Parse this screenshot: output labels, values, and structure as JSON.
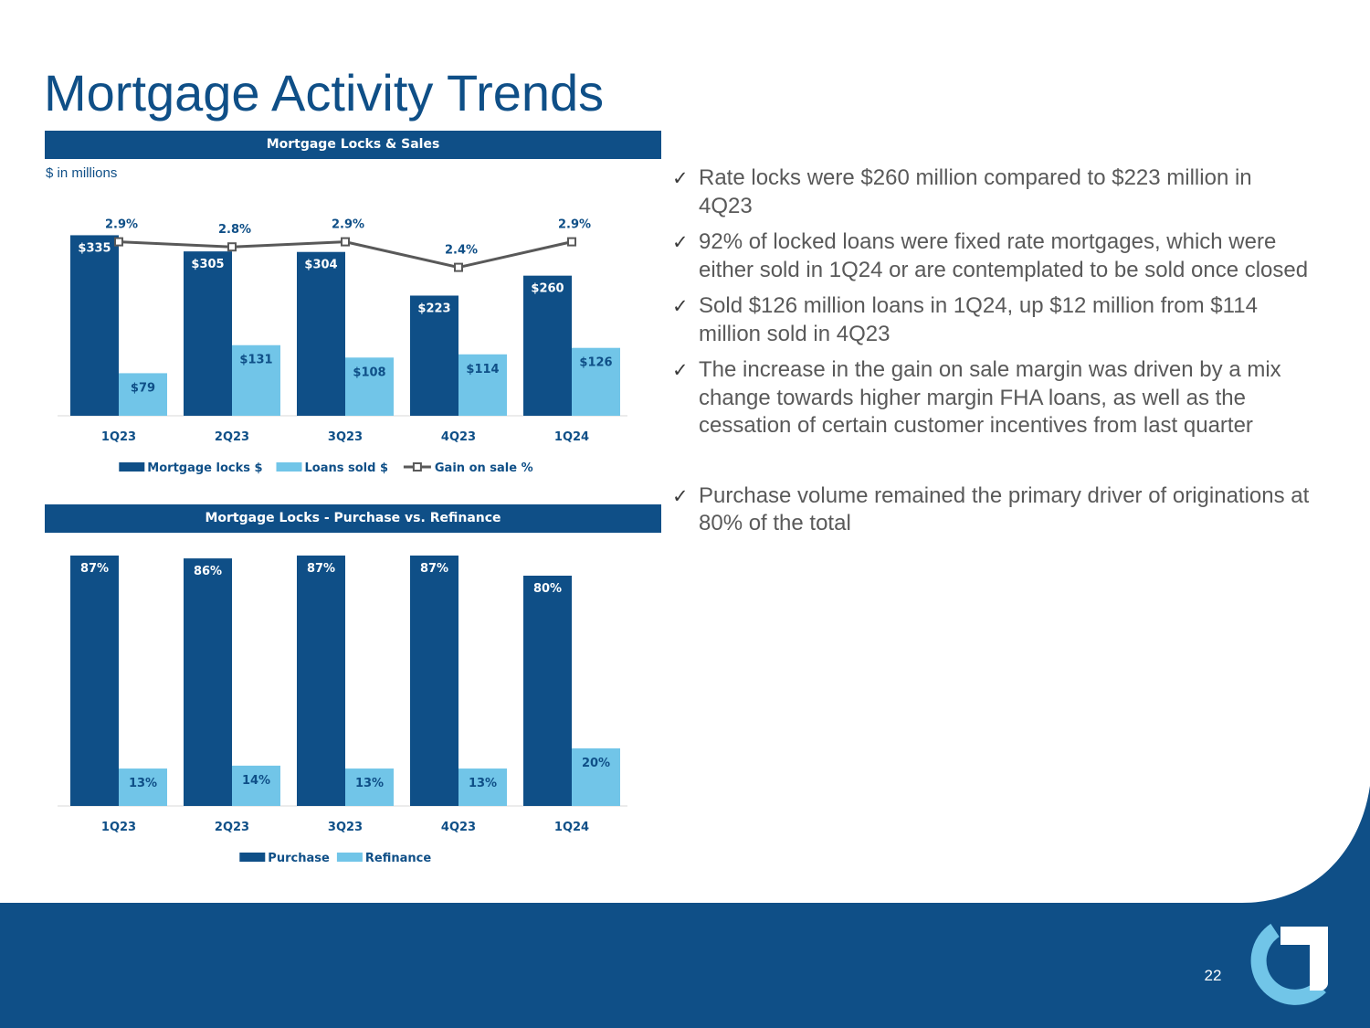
{
  "title": "Mortgage Activity Trends",
  "units_note": "$ in millions",
  "page_number": "22",
  "colors": {
    "navy": "#0f4f87",
    "light_blue": "#71c5e8",
    "line_gray": "#595959",
    "text_gray": "#595959"
  },
  "bullets": [
    {
      "check_icon": "checkmark-icon",
      "text": "Rate locks were $260 million compared to $223 million in 4Q23"
    },
    {
      "check_icon": "checkmark-icon",
      "text": "92% of locked loans were fixed rate mortgages, which were either sold in 1Q24 or are contemplated to be sold once closed"
    },
    {
      "check_icon": "checkmark-icon",
      "text": "Sold $126 million loans in 1Q24, up $12 million from $114 million sold in 4Q23"
    },
    {
      "check_icon": "checkmark-icon",
      "text": "The increase in the gain on sale margin was driven by a mix change towards higher margin FHA loans, as well as the cessation of certain customer incentives from last quarter"
    },
    {
      "check_icon": "checkmark-icon",
      "text": "Purchase volume remained the primary driver of originations at 80% of the total"
    }
  ],
  "chart_data": [
    {
      "type": "bar",
      "title": "Mortgage Locks & Sales",
      "categories": [
        "1Q23",
        "2Q23",
        "3Q23",
        "4Q23",
        "1Q24"
      ],
      "ylim": [
        0,
        390
      ],
      "series": [
        {
          "name": "Mortgage locks $",
          "kind": "bar",
          "color": "#0f4f87",
          "values": [
            335,
            305,
            304,
            223,
            260
          ],
          "labels": [
            "$335",
            "$305",
            "$304",
            "$223",
            "$260"
          ]
        },
        {
          "name": "Loans sold $",
          "kind": "bar",
          "color": "#71c5e8",
          "values": [
            79,
            131,
            108,
            114,
            126
          ],
          "labels": [
            "$79",
            "$131",
            "$108",
            "$114",
            "$126"
          ]
        },
        {
          "name": "Gain on sale %",
          "kind": "line",
          "color": "#595959",
          "values": [
            2.9,
            2.8,
            2.9,
            2.4,
            2.9
          ],
          "labels": [
            "2.9%",
            "2.8%",
            "2.9%",
            "2.4%",
            "2.9%"
          ]
        }
      ]
    },
    {
      "type": "bar",
      "title": "Mortgage Locks - Purchase vs. Refinance",
      "categories": [
        "1Q23",
        "2Q23",
        "3Q23",
        "4Q23",
        "1Q24"
      ],
      "ylim": [
        0,
        100
      ],
      "series": [
        {
          "name": "Purchase",
          "kind": "bar",
          "color": "#0f4f87",
          "values": [
            87,
            86,
            87,
            87,
            80
          ],
          "labels": [
            "87%",
            "86%",
            "87%",
            "87%",
            "80%"
          ]
        },
        {
          "name": "Refinance",
          "kind": "bar",
          "color": "#71c5e8",
          "values": [
            13,
            14,
            13,
            13,
            20
          ],
          "labels": [
            "13%",
            "14%",
            "13%",
            "13%",
            "20%"
          ]
        }
      ]
    }
  ]
}
